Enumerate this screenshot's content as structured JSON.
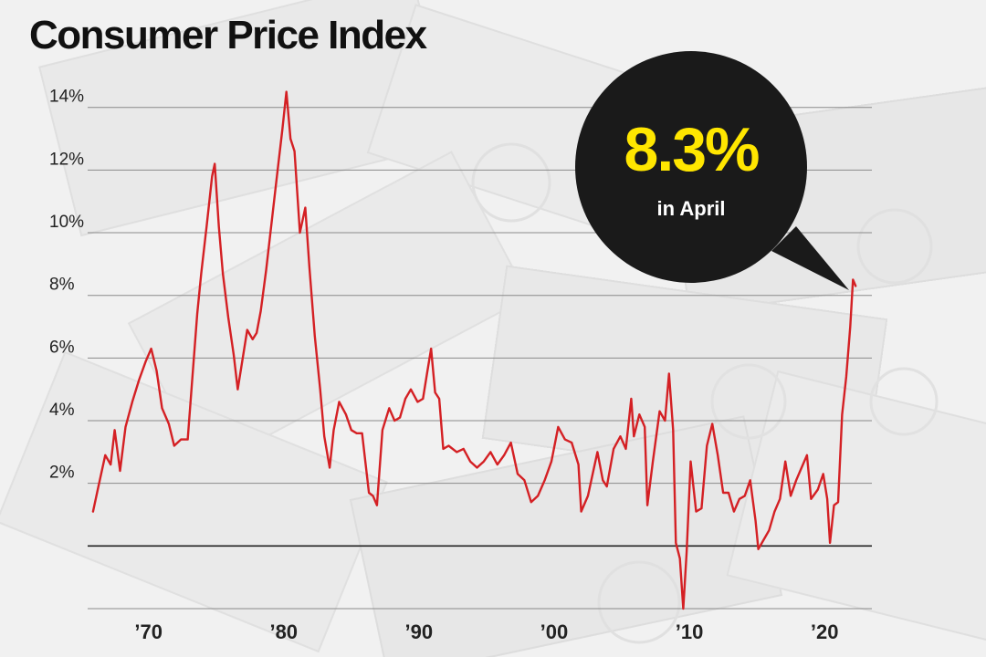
{
  "title": "Consumer Price Index",
  "callout": {
    "value": "8.3%",
    "label": "in April"
  },
  "colors": {
    "line": "#d42024",
    "grid": "#8a8a8a",
    "zero_line": "#222222",
    "bubble": "#1a1a1a",
    "callout_value": "#ffe600"
  },
  "chart_data": {
    "type": "line",
    "title": "Consumer Price Index",
    "xlabel": "",
    "ylabel": "",
    "x_ticks": [
      1970,
      1980,
      1990,
      2000,
      2010,
      2020
    ],
    "x_tick_labels": [
      "’70",
      "’80",
      "’90",
      "’00",
      "’10",
      "’20"
    ],
    "y_ticks": [
      0,
      2,
      4,
      6,
      8,
      10,
      12,
      14
    ],
    "y_tick_labels": [
      "",
      "2%",
      "4%",
      "6%",
      "8%",
      "10%",
      "12%",
      "14%"
    ],
    "xlim": [
      1965.5,
      2023.5
    ],
    "ylim": [
      -2,
      14.4
    ],
    "grid": true,
    "legend": "none",
    "series": [
      {
        "name": "",
        "points": [
          [
            1965.9,
            1.1
          ],
          [
            1966.3,
            1.9
          ],
          [
            1966.8,
            2.9
          ],
          [
            1967.2,
            2.6
          ],
          [
            1967.5,
            3.7
          ],
          [
            1967.9,
            2.4
          ],
          [
            1968.3,
            3.8
          ],
          [
            1968.8,
            4.6
          ],
          [
            1969.3,
            5.3
          ],
          [
            1969.8,
            5.9
          ],
          [
            1970.2,
            6.3
          ],
          [
            1970.6,
            5.6
          ],
          [
            1971.0,
            4.4
          ],
          [
            1971.5,
            3.9
          ],
          [
            1971.9,
            3.2
          ],
          [
            1972.4,
            3.4
          ],
          [
            1972.9,
            3.4
          ],
          [
            1973.2,
            5.1
          ],
          [
            1973.6,
            7.4
          ],
          [
            1973.9,
            8.7
          ],
          [
            1974.3,
            10.2
          ],
          [
            1974.7,
            11.8
          ],
          [
            1974.9,
            12.2
          ],
          [
            1975.2,
            10.2
          ],
          [
            1975.5,
            8.7
          ],
          [
            1975.9,
            7.3
          ],
          [
            1976.3,
            6.1
          ],
          [
            1976.6,
            5.0
          ],
          [
            1976.9,
            5.8
          ],
          [
            1977.3,
            6.9
          ],
          [
            1977.7,
            6.6
          ],
          [
            1978.0,
            6.8
          ],
          [
            1978.3,
            7.5
          ],
          [
            1978.7,
            8.8
          ],
          [
            1979.1,
            10.3
          ],
          [
            1979.5,
            11.8
          ],
          [
            1979.9,
            13.3
          ],
          [
            1980.2,
            14.5
          ],
          [
            1980.5,
            13.0
          ],
          [
            1980.8,
            12.6
          ],
          [
            1981.2,
            10.0
          ],
          [
            1981.6,
            10.8
          ],
          [
            1981.9,
            8.9
          ],
          [
            1982.3,
            6.7
          ],
          [
            1982.7,
            5.0
          ],
          [
            1983.0,
            3.5
          ],
          [
            1983.4,
            2.5
          ],
          [
            1983.7,
            3.7
          ],
          [
            1984.1,
            4.6
          ],
          [
            1984.6,
            4.2
          ],
          [
            1985.0,
            3.7
          ],
          [
            1985.4,
            3.6
          ],
          [
            1985.8,
            3.6
          ],
          [
            1986.3,
            1.7
          ],
          [
            1986.6,
            1.6
          ],
          [
            1986.9,
            1.3
          ],
          [
            1987.3,
            3.7
          ],
          [
            1987.8,
            4.4
          ],
          [
            1988.2,
            4.0
          ],
          [
            1988.6,
            4.1
          ],
          [
            1989.0,
            4.7
          ],
          [
            1989.4,
            5.0
          ],
          [
            1989.9,
            4.6
          ],
          [
            1990.3,
            4.7
          ],
          [
            1990.6,
            5.5
          ],
          [
            1990.9,
            6.3
          ],
          [
            1991.2,
            4.9
          ],
          [
            1991.5,
            4.7
          ],
          [
            1991.8,
            3.1
          ],
          [
            1992.2,
            3.2
          ],
          [
            1992.8,
            3.0
          ],
          [
            1993.3,
            3.1
          ],
          [
            1993.8,
            2.7
          ],
          [
            1994.3,
            2.5
          ],
          [
            1994.8,
            2.7
          ],
          [
            1995.3,
            3.0
          ],
          [
            1995.8,
            2.6
          ],
          [
            1996.3,
            2.9
          ],
          [
            1996.8,
            3.3
          ],
          [
            1997.3,
            2.3
          ],
          [
            1997.8,
            2.1
          ],
          [
            1998.3,
            1.4
          ],
          [
            1998.8,
            1.6
          ],
          [
            1999.3,
            2.1
          ],
          [
            1999.8,
            2.7
          ],
          [
            2000.3,
            3.8
          ],
          [
            2000.8,
            3.4
          ],
          [
            2001.3,
            3.3
          ],
          [
            2001.8,
            2.6
          ],
          [
            2002.0,
            1.1
          ],
          [
            2002.5,
            1.6
          ],
          [
            2002.9,
            2.4
          ],
          [
            2003.2,
            3.0
          ],
          [
            2003.6,
            2.1
          ],
          [
            2003.9,
            1.9
          ],
          [
            2004.4,
            3.1
          ],
          [
            2004.9,
            3.5
          ],
          [
            2005.3,
            3.1
          ],
          [
            2005.7,
            4.7
          ],
          [
            2005.9,
            3.5
          ],
          [
            2006.3,
            4.2
          ],
          [
            2006.7,
            3.8
          ],
          [
            2006.9,
            1.3
          ],
          [
            2007.3,
            2.7
          ],
          [
            2007.8,
            4.3
          ],
          [
            2008.2,
            4.0
          ],
          [
            2008.5,
            5.5
          ],
          [
            2008.8,
            3.7
          ],
          [
            2009.0,
            0.1
          ],
          [
            2009.3,
            -0.4
          ],
          [
            2009.55,
            -2.0
          ],
          [
            2009.8,
            -0.2
          ],
          [
            2010.1,
            2.7
          ],
          [
            2010.5,
            1.1
          ],
          [
            2010.9,
            1.2
          ],
          [
            2011.3,
            3.2
          ],
          [
            2011.7,
            3.9
          ],
          [
            2012.1,
            2.9
          ],
          [
            2012.5,
            1.7
          ],
          [
            2012.9,
            1.7
          ],
          [
            2013.3,
            1.1
          ],
          [
            2013.7,
            1.5
          ],
          [
            2014.1,
            1.6
          ],
          [
            2014.5,
            2.1
          ],
          [
            2014.9,
            0.8
          ],
          [
            2015.1,
            -0.1
          ],
          [
            2015.5,
            0.2
          ],
          [
            2015.9,
            0.5
          ],
          [
            2016.3,
            1.1
          ],
          [
            2016.7,
            1.5
          ],
          [
            2017.1,
            2.7
          ],
          [
            2017.5,
            1.6
          ],
          [
            2017.9,
            2.1
          ],
          [
            2018.3,
            2.5
          ],
          [
            2018.7,
            2.9
          ],
          [
            2019.0,
            1.5
          ],
          [
            2019.5,
            1.8
          ],
          [
            2019.9,
            2.3
          ],
          [
            2020.2,
            1.5
          ],
          [
            2020.4,
            0.1
          ],
          [
            2020.7,
            1.3
          ],
          [
            2021.0,
            1.4
          ],
          [
            2021.3,
            4.2
          ],
          [
            2021.6,
            5.4
          ],
          [
            2021.9,
            7.0
          ],
          [
            2022.1,
            8.5
          ],
          [
            2022.3,
            8.3
          ]
        ]
      }
    ]
  }
}
